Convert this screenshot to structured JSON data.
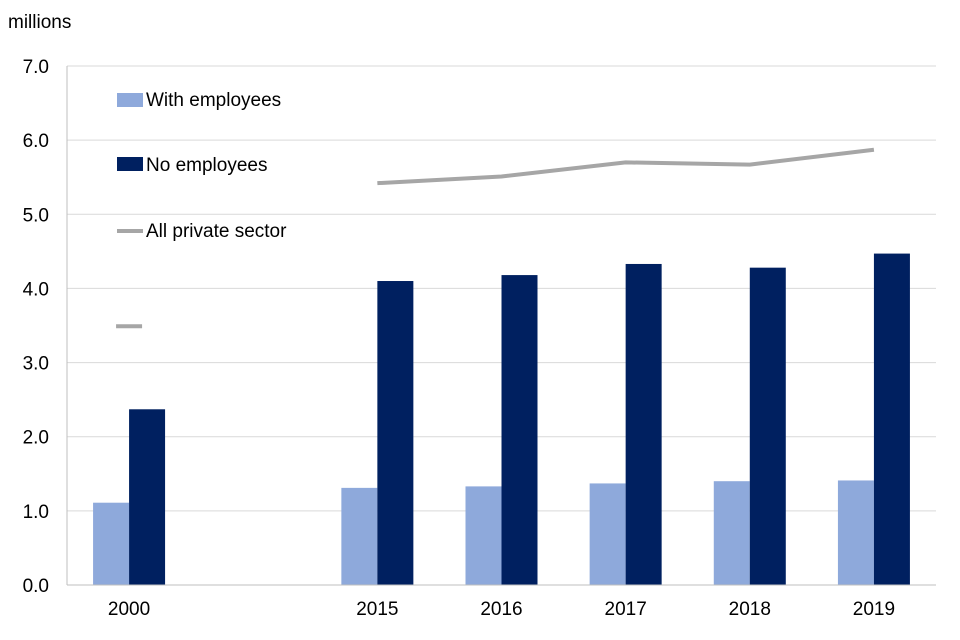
{
  "chart_data": {
    "type": "bar",
    "title": "",
    "xlabel": "",
    "ylabel": "millions",
    "ylim": [
      0,
      7
    ],
    "yticks": [
      "0.0",
      "1.0",
      "2.0",
      "3.0",
      "4.0",
      "5.0",
      "6.0",
      "7.0"
    ],
    "grid": true,
    "legend_position": "top-left",
    "categories": [
      "2000",
      "",
      "2015",
      "2016",
      "2017",
      "2018",
      "2019"
    ],
    "series": [
      {
        "name": "With employees",
        "kind": "bar",
        "color": "#8EA9DB",
        "values": [
          1.11,
          null,
          1.31,
          1.33,
          1.37,
          1.4,
          1.41
        ]
      },
      {
        "name": "No employees",
        "kind": "bar",
        "color": "#002060",
        "values": [
          2.37,
          null,
          4.1,
          4.18,
          4.33,
          4.28,
          4.47
        ]
      },
      {
        "name": "All private sector",
        "kind": "line",
        "color": "#A6A6A6",
        "values": [
          3.49,
          null,
          5.42,
          5.51,
          5.7,
          5.67,
          5.87
        ]
      }
    ]
  }
}
